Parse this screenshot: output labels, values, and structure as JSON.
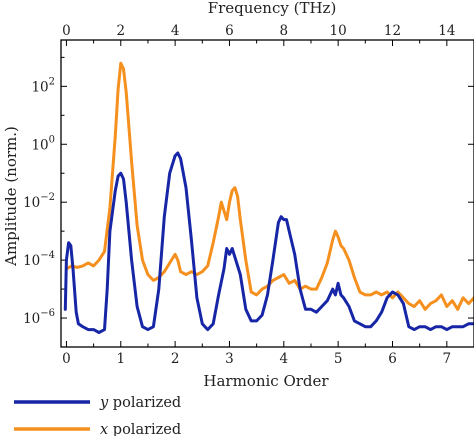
{
  "chart_data": {
    "type": "line",
    "xlabel": "Harmonic Order",
    "ylabel": "Amplitude (norm.)",
    "x2label": "Frequency (THz)",
    "xlim": [
      -0.1,
      7.5
    ],
    "x2lim": [
      -0.2,
      15.0
    ],
    "ylim_log10": [
      -7.0,
      3.6
    ],
    "yscale": "log",
    "grid": false,
    "legend_position": "bottom-left-below",
    "x_ticks": [
      {
        "value": 0,
        "label": "0"
      },
      {
        "value": 1,
        "label": "1"
      },
      {
        "value": 2,
        "label": "2"
      },
      {
        "value": 3,
        "label": "3"
      },
      {
        "value": 4,
        "label": "4"
      },
      {
        "value": 5,
        "label": "5"
      },
      {
        "value": 6,
        "label": "6"
      },
      {
        "value": 7,
        "label": "7"
      }
    ],
    "x2_ticks": [
      {
        "value": 0,
        "label": "0"
      },
      {
        "value": 2,
        "label": "2"
      },
      {
        "value": 4,
        "label": "4"
      },
      {
        "value": 6,
        "label": "6"
      },
      {
        "value": 8,
        "label": "8"
      },
      {
        "value": 10,
        "label": "10"
      },
      {
        "value": 12,
        "label": "12"
      },
      {
        "value": 14,
        "label": "14"
      }
    ],
    "y_ticks": [
      {
        "exp": -6,
        "base": "10",
        "power": "−6"
      },
      {
        "exp": -4,
        "base": "10",
        "power": "−4"
      },
      {
        "exp": -2,
        "base": "10",
        "power": "−2"
      },
      {
        "exp": 0,
        "base": "10",
        "power": "0"
      },
      {
        "exp": 2,
        "base": "10",
        "power": "2"
      }
    ],
    "series": [
      {
        "name": "x polarized",
        "name_italic": "x",
        "name_rest": " polarized",
        "color": "#f5901e",
        "points": [
          [
            0.0,
            -4.3
          ],
          [
            0.1,
            -4.2
          ],
          [
            0.2,
            -4.25
          ],
          [
            0.3,
            -4.2
          ],
          [
            0.4,
            -4.1
          ],
          [
            0.5,
            -4.2
          ],
          [
            0.6,
            -4.0
          ],
          [
            0.7,
            -3.7
          ],
          [
            0.8,
            -2.2
          ],
          [
            0.9,
            0.3
          ],
          [
            0.95,
            1.9
          ],
          [
            1.0,
            2.8
          ],
          [
            1.05,
            2.6
          ],
          [
            1.1,
            1.8
          ],
          [
            1.2,
            -0.6
          ],
          [
            1.3,
            -2.8
          ],
          [
            1.4,
            -4.0
          ],
          [
            1.5,
            -4.5
          ],
          [
            1.6,
            -4.7
          ],
          [
            1.7,
            -4.6
          ],
          [
            1.8,
            -4.4
          ],
          [
            1.9,
            -4.1
          ],
          [
            2.0,
            -3.8
          ],
          [
            2.05,
            -4.0
          ],
          [
            2.1,
            -4.4
          ],
          [
            2.2,
            -4.5
          ],
          [
            2.3,
            -4.4
          ],
          [
            2.4,
            -4.5
          ],
          [
            2.5,
            -4.4
          ],
          [
            2.6,
            -4.2
          ],
          [
            2.7,
            -3.4
          ],
          [
            2.8,
            -2.5
          ],
          [
            2.85,
            -2.0
          ],
          [
            2.9,
            -2.3
          ],
          [
            2.95,
            -2.6
          ],
          [
            3.0,
            -2.0
          ],
          [
            3.05,
            -1.6
          ],
          [
            3.1,
            -1.5
          ],
          [
            3.15,
            -1.8
          ],
          [
            3.2,
            -2.6
          ],
          [
            3.3,
            -4.0
          ],
          [
            3.4,
            -5.1
          ],
          [
            3.5,
            -5.2
          ],
          [
            3.6,
            -5.0
          ],
          [
            3.7,
            -4.9
          ],
          [
            3.8,
            -4.7
          ],
          [
            3.9,
            -4.6
          ],
          [
            4.0,
            -4.5
          ],
          [
            4.1,
            -4.8
          ],
          [
            4.2,
            -4.7
          ],
          [
            4.3,
            -5.0
          ],
          [
            4.4,
            -4.9
          ],
          [
            4.5,
            -5.0
          ],
          [
            4.6,
            -5.0
          ],
          [
            4.7,
            -4.6
          ],
          [
            4.8,
            -4.1
          ],
          [
            4.9,
            -3.3
          ],
          [
            4.95,
            -3.0
          ],
          [
            5.0,
            -3.2
          ],
          [
            5.05,
            -3.5
          ],
          [
            5.1,
            -3.6
          ],
          [
            5.2,
            -4.0
          ],
          [
            5.3,
            -4.6
          ],
          [
            5.4,
            -5.1
          ],
          [
            5.5,
            -5.2
          ],
          [
            5.6,
            -5.2
          ],
          [
            5.7,
            -5.1
          ],
          [
            5.8,
            -5.2
          ],
          [
            5.9,
            -5.1
          ],
          [
            6.0,
            -5.3
          ],
          [
            6.1,
            -5.1
          ],
          [
            6.2,
            -5.3
          ],
          [
            6.3,
            -5.5
          ],
          [
            6.4,
            -5.6
          ],
          [
            6.5,
            -5.4
          ],
          [
            6.6,
            -5.7
          ],
          [
            6.7,
            -5.5
          ],
          [
            6.8,
            -5.4
          ],
          [
            6.9,
            -5.2
          ],
          [
            7.0,
            -5.6
          ],
          [
            7.1,
            -5.4
          ],
          [
            7.2,
            -5.7
          ],
          [
            7.3,
            -5.3
          ],
          [
            7.4,
            -5.5
          ],
          [
            7.5,
            -5.3
          ]
        ]
      },
      {
        "name": "y polarized",
        "name_italic": "y",
        "name_rest": " polarized",
        "color": "#1626a6",
        "points": [
          [
            -0.02,
            -5.7
          ],
          [
            0.0,
            -4.0
          ],
          [
            0.04,
            -3.4
          ],
          [
            0.08,
            -3.5
          ],
          [
            0.12,
            -4.3
          ],
          [
            0.18,
            -5.8
          ],
          [
            0.22,
            -6.2
          ],
          [
            0.3,
            -6.3
          ],
          [
            0.4,
            -6.4
          ],
          [
            0.5,
            -6.4
          ],
          [
            0.6,
            -6.5
          ],
          [
            0.7,
            -6.4
          ],
          [
            0.75,
            -5.0
          ],
          [
            0.8,
            -3.0
          ],
          [
            0.9,
            -1.6
          ],
          [
            0.95,
            -1.1
          ],
          [
            1.0,
            -1.0
          ],
          [
            1.05,
            -1.2
          ],
          [
            1.1,
            -2.0
          ],
          [
            1.2,
            -4.0
          ],
          [
            1.3,
            -5.6
          ],
          [
            1.4,
            -6.3
          ],
          [
            1.5,
            -6.4
          ],
          [
            1.6,
            -6.3
          ],
          [
            1.7,
            -5.0
          ],
          [
            1.8,
            -2.5
          ],
          [
            1.9,
            -1.0
          ],
          [
            2.0,
            -0.4
          ],
          [
            2.05,
            -0.3
          ],
          [
            2.1,
            -0.5
          ],
          [
            2.2,
            -1.5
          ],
          [
            2.3,
            -3.3
          ],
          [
            2.4,
            -5.3
          ],
          [
            2.5,
            -6.2
          ],
          [
            2.6,
            -6.4
          ],
          [
            2.7,
            -6.2
          ],
          [
            2.8,
            -5.2
          ],
          [
            2.9,
            -4.3
          ],
          [
            2.95,
            -3.6
          ],
          [
            3.0,
            -3.8
          ],
          [
            3.05,
            -3.6
          ],
          [
            3.1,
            -3.9
          ],
          [
            3.2,
            -4.5
          ],
          [
            3.3,
            -5.7
          ],
          [
            3.4,
            -6.1
          ],
          [
            3.5,
            -6.1
          ],
          [
            3.6,
            -5.9
          ],
          [
            3.7,
            -5.2
          ],
          [
            3.8,
            -4.0
          ],
          [
            3.9,
            -2.7
          ],
          [
            3.95,
            -2.5
          ],
          [
            4.0,
            -2.6
          ],
          [
            4.05,
            -2.6
          ],
          [
            4.1,
            -3.0
          ],
          [
            4.2,
            -3.8
          ],
          [
            4.3,
            -5.0
          ],
          [
            4.4,
            -5.7
          ],
          [
            4.5,
            -5.7
          ],
          [
            4.6,
            -5.8
          ],
          [
            4.7,
            -5.6
          ],
          [
            4.8,
            -5.4
          ],
          [
            4.9,
            -5.0
          ],
          [
            4.95,
            -5.2
          ],
          [
            5.0,
            -4.8
          ],
          [
            5.05,
            -5.2
          ],
          [
            5.1,
            -5.3
          ],
          [
            5.2,
            -5.6
          ],
          [
            5.3,
            -6.1
          ],
          [
            5.4,
            -6.2
          ],
          [
            5.5,
            -6.3
          ],
          [
            5.6,
            -6.3
          ],
          [
            5.7,
            -6.1
          ],
          [
            5.8,
            -5.8
          ],
          [
            5.9,
            -5.3
          ],
          [
            6.0,
            -5.1
          ],
          [
            6.1,
            -5.2
          ],
          [
            6.2,
            -5.5
          ],
          [
            6.3,
            -6.3
          ],
          [
            6.4,
            -6.4
          ],
          [
            6.5,
            -6.3
          ],
          [
            6.6,
            -6.3
          ],
          [
            6.7,
            -6.4
          ],
          [
            6.8,
            -6.3
          ],
          [
            6.9,
            -6.3
          ],
          [
            7.0,
            -6.4
          ],
          [
            7.1,
            -6.3
          ],
          [
            7.2,
            -6.3
          ],
          [
            7.3,
            -6.3
          ],
          [
            7.4,
            -6.2
          ],
          [
            7.5,
            -6.2
          ]
        ]
      }
    ],
    "legend_order": [
      1,
      0
    ]
  }
}
